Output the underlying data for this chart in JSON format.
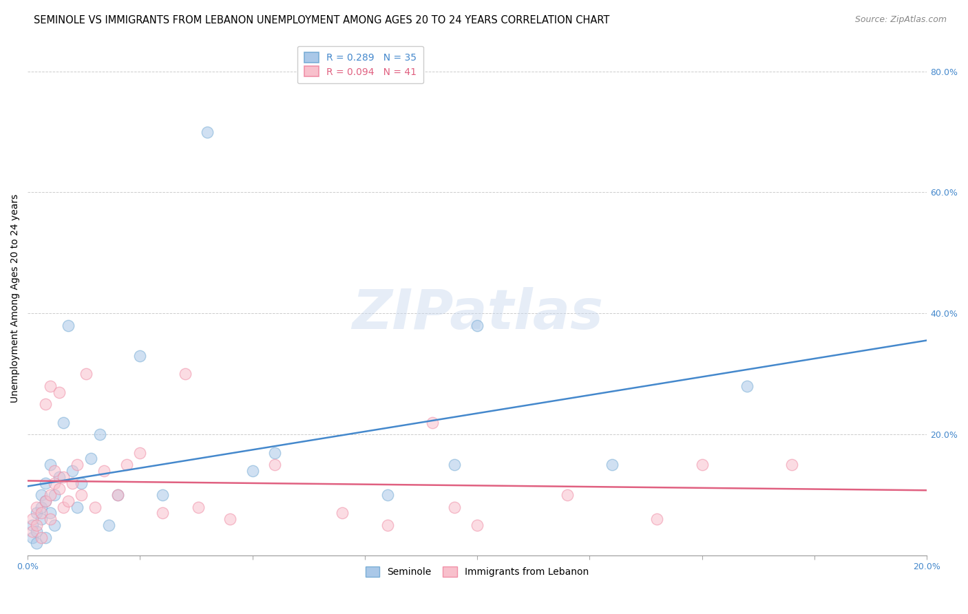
{
  "title": "SEMINOLE VS IMMIGRANTS FROM LEBANON UNEMPLOYMENT AMONG AGES 20 TO 24 YEARS CORRELATION CHART",
  "source": "Source: ZipAtlas.com",
  "ylabel": "Unemployment Among Ages 20 to 24 years",
  "xlim": [
    0.0,
    0.2
  ],
  "ylim": [
    0.0,
    0.85
  ],
  "xtick_positions": [
    0.0,
    0.025,
    0.05,
    0.075,
    0.1,
    0.125,
    0.15,
    0.175,
    0.2
  ],
  "xtick_labels": [
    "0.0%",
    "",
    "",
    "",
    "",
    "",
    "",
    "",
    "20.0%"
  ],
  "yticks_right": [
    0.0,
    0.2,
    0.4,
    0.6,
    0.8
  ],
  "ytick_labels_right": [
    "",
    "20.0%",
    "40.0%",
    "60.0%",
    "80.0%"
  ],
  "seminole_fill_color": "#aac8e8",
  "seminole_edge_color": "#7aaed6",
  "lebanon_fill_color": "#f8c0cc",
  "lebanon_edge_color": "#f090a8",
  "seminole_R": 0.289,
  "seminole_N": 35,
  "lebanon_R": 0.094,
  "lebanon_N": 41,
  "seminole_line_color": "#4488cc",
  "lebanon_line_color": "#e06080",
  "watermark_text": "ZIPatlas",
  "seminole_scatter_x": [
    0.001,
    0.001,
    0.002,
    0.002,
    0.002,
    0.003,
    0.003,
    0.003,
    0.004,
    0.004,
    0.004,
    0.005,
    0.005,
    0.006,
    0.006,
    0.007,
    0.008,
    0.009,
    0.01,
    0.011,
    0.012,
    0.014,
    0.016,
    0.018,
    0.02,
    0.025,
    0.03,
    0.04,
    0.05,
    0.055,
    0.08,
    0.095,
    0.1,
    0.13,
    0.16
  ],
  "seminole_scatter_y": [
    0.03,
    0.05,
    0.04,
    0.07,
    0.02,
    0.06,
    0.08,
    0.1,
    0.09,
    0.12,
    0.03,
    0.07,
    0.15,
    0.1,
    0.05,
    0.13,
    0.22,
    0.38,
    0.14,
    0.08,
    0.12,
    0.16,
    0.2,
    0.05,
    0.1,
    0.33,
    0.1,
    0.7,
    0.14,
    0.17,
    0.1,
    0.15,
    0.38,
    0.15,
    0.28
  ],
  "lebanon_scatter_x": [
    0.001,
    0.001,
    0.002,
    0.002,
    0.003,
    0.003,
    0.004,
    0.004,
    0.005,
    0.005,
    0.005,
    0.006,
    0.006,
    0.007,
    0.007,
    0.008,
    0.008,
    0.009,
    0.01,
    0.011,
    0.012,
    0.013,
    0.015,
    0.017,
    0.02,
    0.022,
    0.025,
    0.03,
    0.035,
    0.038,
    0.045,
    0.055,
    0.07,
    0.08,
    0.09,
    0.095,
    0.1,
    0.12,
    0.14,
    0.15,
    0.17
  ],
  "lebanon_scatter_y": [
    0.04,
    0.06,
    0.05,
    0.08,
    0.03,
    0.07,
    0.09,
    0.25,
    0.06,
    0.1,
    0.28,
    0.12,
    0.14,
    0.11,
    0.27,
    0.08,
    0.13,
    0.09,
    0.12,
    0.15,
    0.1,
    0.3,
    0.08,
    0.14,
    0.1,
    0.15,
    0.17,
    0.07,
    0.3,
    0.08,
    0.06,
    0.15,
    0.07,
    0.05,
    0.22,
    0.08,
    0.05,
    0.1,
    0.06,
    0.15,
    0.15
  ],
  "title_fontsize": 10.5,
  "source_fontsize": 9,
  "axis_label_fontsize": 10,
  "tick_fontsize": 9,
  "legend_fontsize": 10
}
